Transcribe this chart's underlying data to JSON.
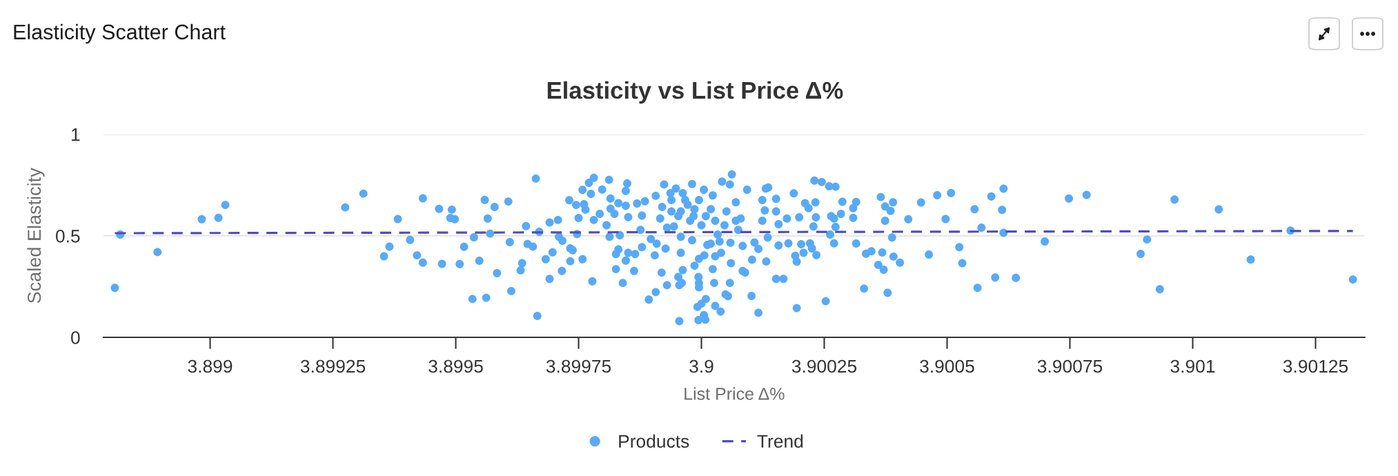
{
  "chart_data": {
    "type": "scatter",
    "title": "Elasticity vs List Price Δ%",
    "annotations": [
      "Elasticity Scatter Chart"
    ],
    "xlabel": "List Price Δ%",
    "ylabel": "Scaled Elasticity",
    "xlim": [
      3.898783,
      3.90135
    ],
    "xticks": [
      3.899,
      3.89925,
      3.8995,
      3.89975,
      3.9,
      3.90025,
      3.9005,
      3.90075,
      3.901,
      3.90125
    ],
    "ylim": [
      0,
      1
    ],
    "yticks": [
      0,
      0.5,
      1
    ],
    "grid": "y",
    "legend": "bottom",
    "series": [
      {
        "name": "Products",
        "color": "#58aaf6",
        "marker": "circle",
        "x": [
          3.898806,
          3.898817,
          3.898893,
          3.898983,
          3.899017,
          3.899031,
          3.899275,
          3.899312,
          3.899354,
          3.899365,
          3.899382,
          3.899407,
          3.899421,
          3.899433,
          3.899433,
          3.899466,
          3.899492,
          3.899489,
          3.899498,
          3.899472,
          3.899508,
          3.899517,
          3.899537,
          3.899534,
          3.899562,
          3.899548,
          3.899559,
          3.899565,
          3.899579,
          3.89957,
          3.899584,
          3.899607,
          3.89961,
          3.899613,
          3.899632,
          3.899635,
          3.899643,
          3.899646,
          3.899657,
          3.899663,
          3.899666,
          3.89967,
          3.899683,
          3.899691,
          3.899691,
          3.899697,
          3.899708,
          3.89971,
          3.899717,
          3.899716,
          3.899731,
          3.899733,
          3.899738,
          3.899733,
          3.899745,
          3.899747,
          3.89975,
          3.899758,
          3.899758,
          3.899761,
          3.899764,
          3.899771,
          3.899781,
          3.899775,
          3.899778,
          3.899781,
          3.899793,
          3.899798,
          3.899812,
          3.899807,
          3.899815,
          3.899815,
          3.899823,
          3.899813,
          3.899826,
          3.899826,
          3.899831,
          3.899834,
          3.89984,
          3.899831,
          3.899849,
          3.899846,
          3.899846,
          3.899851,
          3.899846,
          3.899851,
          3.899863,
          3.899865,
          3.899869,
          3.899879,
          3.899879,
          3.899876,
          3.899885,
          3.899893,
          3.899897,
          3.899905,
          3.899907,
          3.899907,
          3.899909,
          3.899919,
          3.899924,
          3.899927,
          3.89993,
          3.899916,
          3.89992,
          3.899937,
          3.899948,
          3.899944,
          3.899958,
          3.899958,
          3.899955,
          3.899962,
          3.899955,
          3.899953,
          3.89996,
          3.899981,
          3.899986,
          3.899995,
          3.900006,
          3.899995,
          3.899994,
          3.899995,
          3.899994,
          3.900008,
          3.899992,
          3.900009,
          3.900005,
          3.9,
          3.900026,
          3.900023,
          3.900028,
          3.900039,
          3.900049,
          3.900054,
          3.900058,
          3.90006,
          3.90004,
          3.900028,
          3.900062,
          3.900042,
          3.900058,
          3.900059,
          3.900023,
          3.900019,
          3.900005,
          3.899984,
          3.899981,
          3.900012,
          3.900037,
          3.899939,
          3.899967,
          3.899958,
          3.899986,
          3.9,
          3.89993,
          3.90007,
          3.90008,
          3.900084,
          3.900084,
          3.900047,
          3.899962,
          3.899972,
          3.899995,
          3.900009,
          3.900028,
          3.900033,
          3.90007,
          3.900075,
          3.899977,
          3.899953,
          3.899939,
          3.900019,
          3.900051,
          3.900093,
          3.900102,
          3.900116,
          3.900108,
          3.900116,
          3.900103,
          3.900089,
          3.900124,
          3.900124,
          3.900131,
          3.900136,
          3.900129,
          3.900132,
          3.900135,
          3.900152,
          3.900152,
          3.900157,
          3.900157,
          3.900152,
          3.900167,
          3.900174,
          3.900177,
          3.900188,
          3.900194,
          3.900191,
          3.900194,
          3.900203,
          3.900208,
          3.900199,
          3.900211,
          3.900218,
          3.900221,
          3.900225,
          3.900228,
          3.90023,
          3.900232,
          3.900233,
          3.900234,
          3.900245,
          3.900253,
          3.90026,
          3.900273,
          3.900262,
          3.900264,
          3.90027,
          3.900273,
          3.90027,
          3.900284,
          3.900287,
          3.900309,
          3.900309,
          3.900315,
          3.900315,
          3.900331,
          3.900335,
          3.900346,
          3.90036,
          3.900365,
          3.900368,
          3.900371,
          3.900374,
          3.900374,
          3.900379,
          3.900385,
          3.900388,
          3.90039,
          3.900391,
          3.900404,
          3.900421,
          3.900447,
          3.900463,
          3.90048,
          3.900497,
          3.900508,
          3.900525,
          3.900531,
          3.900556,
          3.900562,
          3.90057,
          3.90059,
          3.900598,
          3.900612,
          3.900615,
          3.900615,
          3.90064,
          3.900699,
          3.900748,
          3.900784,
          3.900894,
          3.900907,
          3.900933,
          3.900963,
          3.901053,
          3.901118,
          3.901199,
          3.901326
        ],
        "values": [
          0.244,
          0.506,
          0.42,
          0.582,
          0.589,
          0.652,
          0.64,
          0.708,
          0.399,
          0.447,
          0.583,
          0.48,
          0.404,
          0.368,
          0.685,
          0.633,
          0.629,
          0.588,
          0.582,
          0.362,
          0.361,
          0.446,
          0.493,
          0.189,
          0.195,
          0.377,
          0.677,
          0.585,
          0.642,
          0.511,
          0.316,
          0.669,
          0.469,
          0.228,
          0.33,
          0.365,
          0.548,
          0.46,
          0.447,
          0.782,
          0.105,
          0.52,
          0.385,
          0.566,
          0.288,
          0.419,
          0.578,
          0.495,
          0.476,
          0.327,
          0.675,
          0.438,
          0.429,
          0.375,
          0.652,
          0.509,
          0.588,
          0.385,
          0.726,
          0.656,
          0.629,
          0.761,
          0.786,
          0.707,
          0.276,
          0.578,
          0.608,
          0.728,
          0.776,
          0.552,
          0.684,
          0.634,
          0.608,
          0.495,
          0.41,
          0.336,
          0.433,
          0.503,
          0.268,
          0.661,
          0.758,
          0.721,
          0.648,
          0.592,
          0.378,
          0.416,
          0.327,
          0.41,
          0.659,
          0.6,
          0.444,
          0.529,
          0.67,
          0.186,
          0.484,
          0.404,
          0.697,
          0.223,
          0.461,
          0.319,
          0.753,
          0.437,
          0.257,
          0.585,
          0.642,
          0.71,
          0.733,
          0.546,
          0.495,
          0.416,
          0.08,
          0.331,
          0.257,
          0.297,
          0.268,
          0.755,
          0.353,
          0.387,
          0.404,
          0.268,
          0.297,
          0.246,
          0.085,
          0.087,
          0.15,
          0.189,
          0.11,
          0.166,
          0.268,
          0.336,
          0.155,
          0.127,
          0.212,
          0.203,
          0.268,
          0.365,
          0.416,
          0.399,
          0.803,
          0.767,
          0.753,
          0.466,
          0.699,
          0.631,
          0.727,
          0.597,
          0.478,
          0.455,
          0.472,
          0.676,
          0.676,
          0.62,
          0.631,
          0.552,
          0.54,
          0.665,
          0.585,
          0.45,
          0.327,
          0.552,
          0.71,
          0.653,
          0.676,
          0.597,
          0.574,
          0.506,
          0.574,
          0.529,
          0.574,
          0.597,
          0.62,
          0.461,
          0.62,
          0.727,
          0.204,
          0.121,
          0.467,
          0.436,
          0.382,
          0.319,
          0.676,
          0.574,
          0.733,
          0.738,
          0.625,
          0.374,
          0.492,
          0.682,
          0.62,
          0.557,
          0.453,
          0.288,
          0.288,
          0.585,
          0.463,
          0.709,
          0.144,
          0.402,
          0.373,
          0.459,
          0.416,
          0.591,
          0.661,
          0.636,
          0.463,
          0.438,
          0.546,
          0.772,
          0.665,
          0.591,
          0.405,
          0.765,
          0.178,
          0.744,
          0.742,
          0.506,
          0.597,
          0.585,
          0.544,
          0.463,
          0.608,
          0.668,
          0.636,
          0.589,
          0.667,
          0.462,
          0.24,
          0.412,
          0.424,
          0.357,
          0.691,
          0.418,
          0.333,
          0.645,
          0.574,
          0.219,
          0.623,
          0.492,
          0.665,
          0.398,
          0.368,
          0.582,
          0.664,
          0.408,
          0.7,
          0.583,
          0.711,
          0.444,
          0.365,
          0.631,
          0.244,
          0.54,
          0.694,
          0.295,
          0.628,
          0.732,
          0.515,
          0.293,
          0.472,
          0.684,
          0.702,
          0.411,
          0.482,
          0.237,
          0.679,
          0.63,
          0.383,
          0.526,
          0.285
        ]
      },
      {
        "name": "Trend",
        "type": "line",
        "color": "#4f4cbf",
        "line_style": "dashed",
        "x": [
          3.898806,
          3.901326
        ],
        "values": [
          0.513,
          0.524
        ]
      }
    ]
  }
}
